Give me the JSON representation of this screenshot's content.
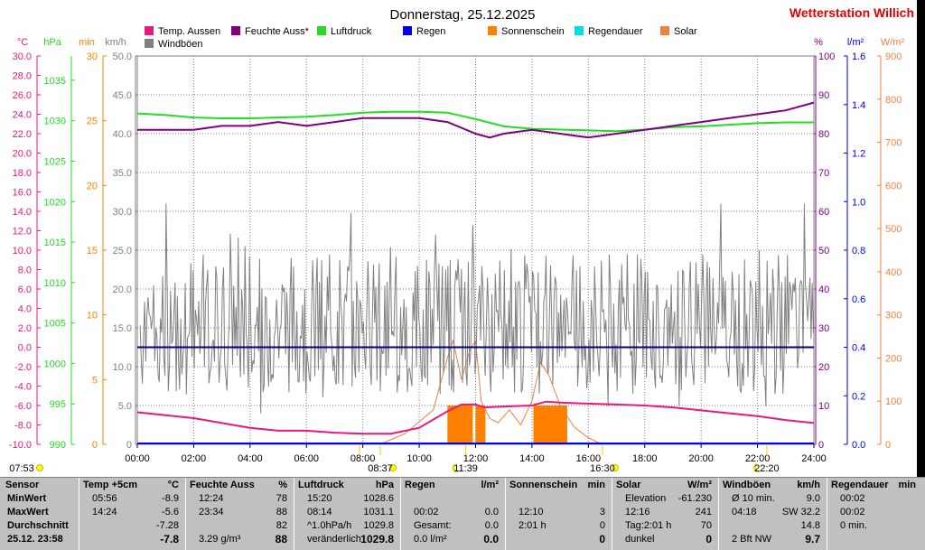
{
  "title": "Donnerstag, 25.12.2025",
  "station": "Wetterstation Willich",
  "colors": {
    "temp": "#e8187c",
    "humidity": "#800080",
    "pressure": "#22dd22",
    "rain": "#0000ee",
    "sunshine": "#ff8000",
    "raindur": "#00e0e0",
    "solar": "#f08040",
    "gust": "#808080",
    "navy": "#000080"
  },
  "legend": [
    {
      "label": "Temp. Aussen",
      "color": "#e8187c"
    },
    {
      "label": "Feuchte Auss*",
      "color": "#800080"
    },
    {
      "label": "Luftdruck",
      "color": "#22dd22"
    },
    {
      "label": "Regen",
      "color": "#0000ee"
    },
    {
      "label": "Sonnenschein",
      "color": "#ff8000"
    },
    {
      "label": "Regendauer",
      "color": "#00e0e0"
    },
    {
      "label": "Solar",
      "color": "#f08040"
    },
    {
      "label": "Windböen",
      "color": "#808080"
    }
  ],
  "axis_units": {
    "temp": "°C",
    "pressure": "hPa",
    "min": "min",
    "wind": "km/h",
    "percent": "%",
    "rain": "l/m²",
    "solar": "W/m²"
  },
  "chart_data": {
    "type": "line",
    "x_range_hours": [
      0,
      24
    ],
    "x_ticks": [
      "00:00",
      "02:00",
      "04:00",
      "06:00",
      "08:00",
      "10:00",
      "12:00",
      "14:00",
      "16:00",
      "18:00",
      "20:00",
      "22:00",
      "24:00"
    ],
    "axes": {
      "temp": {
        "range": [
          -10,
          30
        ],
        "ticks": [
          "30.0",
          "28.0",
          "26.0",
          "24.0",
          "22.0",
          "20.0",
          "18.0",
          "16.0",
          "14.0",
          "12.0",
          "10.0",
          "8.0",
          "6.0",
          "4.0",
          "2.0",
          "0.0",
          "-2.0",
          "-4.0",
          "-6.0",
          "-8.0",
          "-10.0"
        ]
      },
      "pressure": {
        "range": [
          990,
          1038
        ],
        "ticks": [
          "1035",
          "1030",
          "1025",
          "1020",
          "1015",
          "1010",
          "1005",
          "1000",
          "995",
          "990"
        ]
      },
      "minutes": {
        "range": [
          0,
          30
        ],
        "ticks": [
          "30",
          "25",
          "20",
          "15",
          "10",
          "5",
          "0"
        ]
      },
      "wind": {
        "range": [
          0,
          50
        ],
        "ticks": [
          "50.0",
          "45.0",
          "40.0",
          "35.0",
          "30.0",
          "25.0",
          "20.0",
          "15.0",
          "10.0",
          "5.0",
          "0"
        ]
      },
      "percent": {
        "range": [
          0,
          100
        ],
        "ticks": [
          "100",
          "90",
          "80",
          "70",
          "60",
          "50",
          "40",
          "30",
          "20",
          "10",
          "0"
        ]
      },
      "rain": {
        "range": [
          0,
          1.6
        ],
        "ticks": [
          "1.6",
          "1.4",
          "1.2",
          "1.0",
          "0.8",
          "0.6",
          "0.4",
          "0.2",
          "0.0"
        ]
      },
      "solar": {
        "range": [
          0,
          900
        ],
        "ticks": [
          "900",
          "800",
          "700",
          "600",
          "500",
          "400",
          "300",
          "200",
          "100",
          "0"
        ]
      }
    },
    "series": [
      {
        "name": "Temp. Aussen",
        "axis": "temp",
        "x": [
          0,
          1,
          2,
          3,
          4,
          5,
          6,
          7,
          8,
          9,
          10,
          11,
          11.5,
          12,
          12.3,
          13,
          14,
          14.5,
          15,
          16,
          17,
          18,
          19,
          20,
          21,
          22,
          23,
          24
        ],
        "y": [
          -6.7,
          -7.0,
          -7.3,
          -7.8,
          -8.3,
          -8.6,
          -8.6,
          -8.8,
          -8.9,
          -8.9,
          -8.3,
          -6.6,
          -5.9,
          -5.9,
          -6.2,
          -6.1,
          -6.0,
          -5.6,
          -5.7,
          -5.8,
          -5.9,
          -6.0,
          -6.2,
          -6.5,
          -6.8,
          -7.1,
          -7.5,
          -7.8
        ]
      },
      {
        "name": "Feuchte Auss*",
        "axis": "percent",
        "x": [
          0,
          1,
          2,
          3,
          4,
          5,
          6,
          7,
          8,
          9,
          10,
          11,
          12,
          12.5,
          13,
          14,
          15,
          16,
          17,
          18,
          19,
          20,
          21,
          22,
          23,
          24
        ],
        "y": [
          81,
          81,
          81,
          82,
          82,
          83,
          82,
          83,
          84,
          84,
          84,
          83,
          80,
          79,
          80,
          81,
          80,
          79,
          80,
          81,
          82,
          83,
          84,
          85,
          86,
          88
        ]
      },
      {
        "name": "Luftdruck",
        "axis": "pressure",
        "x": [
          0,
          1,
          2,
          3,
          4,
          5,
          6,
          7,
          8,
          9,
          10,
          11,
          12,
          13,
          14,
          15,
          16,
          17,
          18,
          19,
          20,
          21,
          22,
          23,
          24
        ],
        "y": [
          1030.9,
          1030.7,
          1030.4,
          1030.3,
          1030.3,
          1030.4,
          1030.5,
          1030.7,
          1031.0,
          1031.1,
          1031.1,
          1031.0,
          1030.2,
          1029.3,
          1029.0,
          1028.9,
          1028.8,
          1028.7,
          1028.9,
          1029.2,
          1029.3,
          1029.5,
          1029.7,
          1029.8,
          1029.8
        ]
      },
      {
        "name": "Regen",
        "axis": "rain",
        "x": [
          0,
          24
        ],
        "y": [
          0.0,
          0.0
        ]
      },
      {
        "name": "Windböen",
        "axis": "wind",
        "style": "gust",
        "x_range": [
          0.1,
          24
        ],
        "base": 15.5,
        "amplitude": 14
      }
    ],
    "reference_line": {
      "axis": "wind",
      "value": 12.5
    },
    "solar_curve": {
      "axis": "solar",
      "x": [
        8.6,
        9.5,
        10.5,
        11,
        11.2,
        11.5,
        11.8,
        12,
        12.2,
        12.5,
        12.8,
        13.2,
        13.6,
        14,
        14.3,
        14.6,
        15,
        15.5,
        16,
        16.5
      ],
      "y": [
        0,
        25,
        80,
        200,
        241,
        150,
        220,
        240,
        100,
        60,
        50,
        80,
        45,
        100,
        190,
        160,
        90,
        40,
        15,
        0
      ]
    },
    "sunshine_bars": [
      {
        "from": 11.0,
        "to": 11.9,
        "minutes": 3
      },
      {
        "from": 12.0,
        "to": 12.35,
        "minutes": 3
      },
      {
        "from": 14.05,
        "to": 15.25,
        "minutes": 3
      }
    ],
    "markers": [
      {
        "label": "07:53",
        "hour": 7.88,
        "kind": "sunrise-edge"
      },
      {
        "label": "08:37",
        "hour": 8.62,
        "kind": "sun"
      },
      {
        "label": "11:39",
        "hour": 11.65,
        "kind": "moon"
      },
      {
        "label": "16:30",
        "hour": 16.5,
        "kind": "sun"
      },
      {
        "label": "22:20",
        "hour": 22.33,
        "kind": "moon"
      }
    ]
  },
  "summary": {
    "sensor": {
      "header": "Sensor",
      "rows": [
        "MinWert",
        "MaxWert",
        "Durchschnitt",
        "25.12. 23:58"
      ]
    },
    "temp": {
      "header": "Temp +5cm",
      "unit": "°C",
      "rows": [
        [
          "05:56",
          "-8.9"
        ],
        [
          "14:24",
          "-5.6"
        ],
        [
          "",
          "-7.28"
        ],
        [
          "",
          "-7.8"
        ]
      ]
    },
    "humidity": {
      "header": "Feuchte Auss",
      "unit": "%",
      "rows": [
        [
          "12:24",
          "78"
        ],
        [
          "23:34",
          "88"
        ],
        [
          "",
          "82"
        ],
        [
          "3.29 g/m³",
          "88"
        ]
      ]
    },
    "pressure": {
      "header": "Luftdruck",
      "unit": "hPa",
      "rows": [
        [
          "15:20",
          "1028.6"
        ],
        [
          "08:14",
          "1031.1"
        ],
        [
          "^1.0hPa/h",
          "1029.8"
        ],
        [
          "veränderlich",
          "1029.8"
        ]
      ]
    },
    "rain": {
      "header": "Regen",
      "unit": "l/m²",
      "rows": [
        [
          "",
          ""
        ],
        [
          "00:02",
          "0.0"
        ],
        [
          "Gesamt:",
          "0.0"
        ],
        [
          "0.0 l/m²",
          "0.0"
        ]
      ]
    },
    "sunshine": {
      "header": "Sonnenschein",
      "unit": "min",
      "rows": [
        [
          "",
          ""
        ],
        [
          "12:10",
          "3"
        ],
        [
          "2:01 h",
          "0"
        ],
        [
          "",
          "0"
        ]
      ]
    },
    "solar": {
      "header": "Solar",
      "unit": "W/m²",
      "rows": [
        [
          "Elevation",
          "-61.230"
        ],
        [
          "12:16",
          "241"
        ],
        [
          "Tag:2:01 h",
          "70"
        ],
        [
          "dunkel",
          "0"
        ]
      ]
    },
    "wind": {
      "header": "Windböen",
      "unit": "km/h",
      "rows": [
        [
          "Ø 10 min.",
          "9.0"
        ],
        [
          "04:18",
          "SW 32.2"
        ],
        [
          "",
          "14.8"
        ],
        [
          "2 Bft NW",
          "9.7"
        ]
      ]
    },
    "raindur": {
      "header": "Regendauer",
      "unit": "min",
      "rows": [
        [
          "00:02",
          ""
        ],
        [
          "00:02",
          ""
        ],
        [
          "0 min.",
          ""
        ],
        [
          "",
          ""
        ]
      ]
    }
  }
}
